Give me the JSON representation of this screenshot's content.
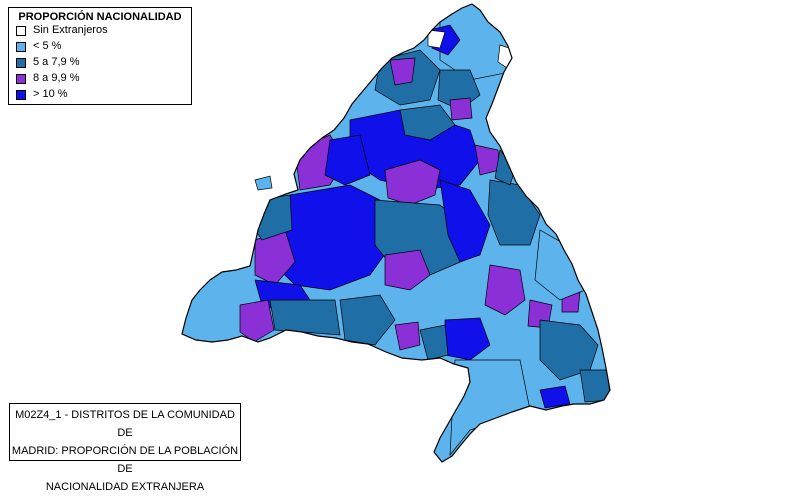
{
  "legend": {
    "title": "PROPORCIÓN NACIONALIDAD",
    "items": [
      {
        "label": "Sin Extranjeros",
        "color": "#ffffff"
      },
      {
        "label": "< 5 %",
        "color": "#5db4ed"
      },
      {
        "label": "5 a 7,9 %",
        "color": "#1f6fa6"
      },
      {
        "label": "8 a 9,9 %",
        "color": "#8b2fd6"
      },
      {
        "label": "> 10 %",
        "color": "#1010ea"
      }
    ]
  },
  "caption": {
    "lines": [
      "M02Z4_1 - DISTRITOS DE LA COMUNIDAD DE",
      "MADRID: PROPORCIÓN DE LA POBLACIÓN DE",
      "NACIONALIDAD EXTRANJERA"
    ]
  }
}
